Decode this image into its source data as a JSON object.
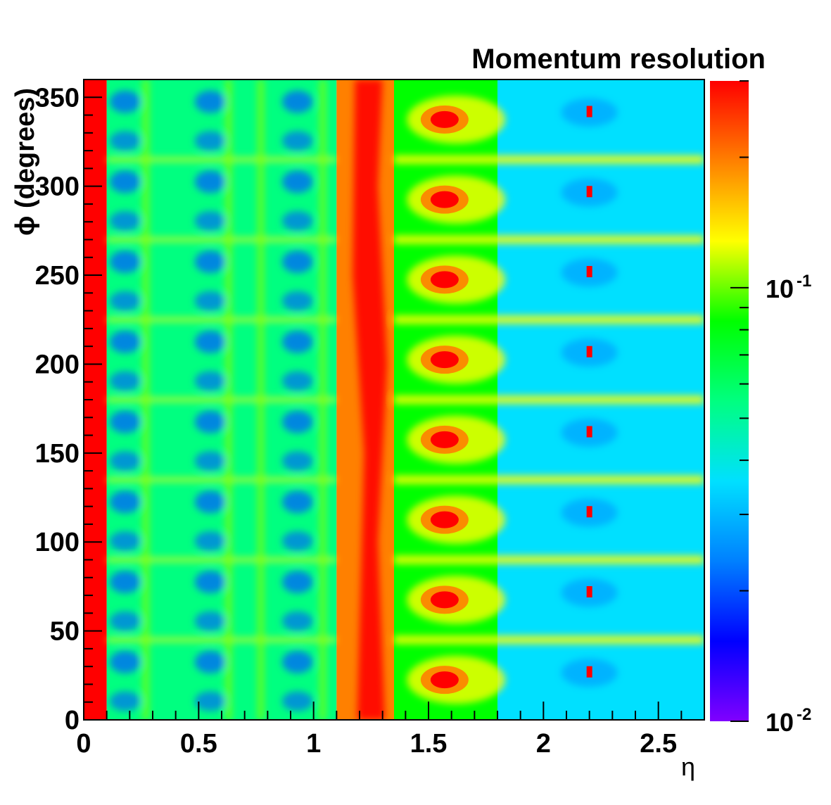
{
  "chart_data": {
    "type": "heatmap",
    "title": "Momentum resolution",
    "xlabel": "η",
    "ylabel": "ϕ (degrees)",
    "xlim": [
      0,
      2.7
    ],
    "ylim": [
      0,
      360
    ],
    "x_ticks": [
      {
        "value": 0,
        "label": "0"
      },
      {
        "value": 0.5,
        "label": "0.5"
      },
      {
        "value": 1,
        "label": "1"
      },
      {
        "value": 1.5,
        "label": "1.5"
      },
      {
        "value": 2,
        "label": "2"
      },
      {
        "value": 2.5,
        "label": "2.5"
      }
    ],
    "y_ticks": [
      {
        "value": 0,
        "label": "0"
      },
      {
        "value": 50,
        "label": "50"
      },
      {
        "value": 100,
        "label": "100"
      },
      {
        "value": 150,
        "label": "150"
      },
      {
        "value": 200,
        "label": "200"
      },
      {
        "value": 250,
        "label": "250"
      },
      {
        "value": 300,
        "label": "300"
      },
      {
        "value": 350,
        "label": "350"
      }
    ],
    "z_scale": "log",
    "zlim": [
      0.01,
      0.3
    ],
    "z_ticks": [
      {
        "value": 0.1,
        "base": "10",
        "exp": "-1"
      },
      {
        "value": 0.01,
        "base": "10",
        "exp": "-2"
      }
    ],
    "colormap": [
      "#8000ff",
      "#0000ff",
      "#0080ff",
      "#00e0ff",
      "#00ff80",
      "#00ff00",
      "#ffff00",
      "#ff8000",
      "#ff0000"
    ],
    "grid": false,
    "legend": "color bar right",
    "colorbar_label": "",
    "phi_cell_centers_deg": [
      22.5,
      67.5,
      112.5,
      157.5,
      202.5,
      247.5,
      292.5,
      337.5
    ],
    "regions": [
      {
        "eta": [
          0.0,
          0.1
        ],
        "value": 0.25
      },
      {
        "eta": [
          0.1,
          1.1
        ],
        "value": 0.05
      },
      {
        "eta": [
          1.1,
          1.35
        ],
        "value": 0.2
      },
      {
        "eta": [
          1.35,
          1.8
        ],
        "value": 0.07
      },
      {
        "eta": [
          1.8,
          2.7
        ],
        "value": 0.035
      }
    ],
    "hotspots": [
      {
        "eta": 1.57,
        "phi": 22.5,
        "value": 0.3
      },
      {
        "eta": 1.57,
        "phi": 67.5,
        "value": 0.3
      },
      {
        "eta": 1.57,
        "phi": 112.5,
        "value": 0.3
      },
      {
        "eta": 1.57,
        "phi": 157.5,
        "value": 0.3
      },
      {
        "eta": 1.57,
        "phi": 202.5,
        "value": 0.3
      },
      {
        "eta": 1.57,
        "phi": 247.5,
        "value": 0.3
      },
      {
        "eta": 1.57,
        "phi": 292.5,
        "value": 0.3
      },
      {
        "eta": 1.57,
        "phi": 337.5,
        "value": 0.3
      },
      {
        "eta": 2.2,
        "phi": 27,
        "value": 0.3
      },
      {
        "eta": 2.2,
        "phi": 72,
        "value": 0.3
      },
      {
        "eta": 2.2,
        "phi": 117,
        "value": 0.3
      },
      {
        "eta": 2.2,
        "phi": 162,
        "value": 0.3
      },
      {
        "eta": 2.2,
        "phi": 207,
        "value": 0.3
      },
      {
        "eta": 2.2,
        "phi": 252,
        "value": 0.3
      },
      {
        "eta": 2.2,
        "phi": 297,
        "value": 0.3
      },
      {
        "eta": 2.2,
        "phi": 342,
        "value": 0.3
      }
    ],
    "bands_deg": [
      45,
      90,
      135,
      180,
      225,
      270,
      315
    ]
  }
}
